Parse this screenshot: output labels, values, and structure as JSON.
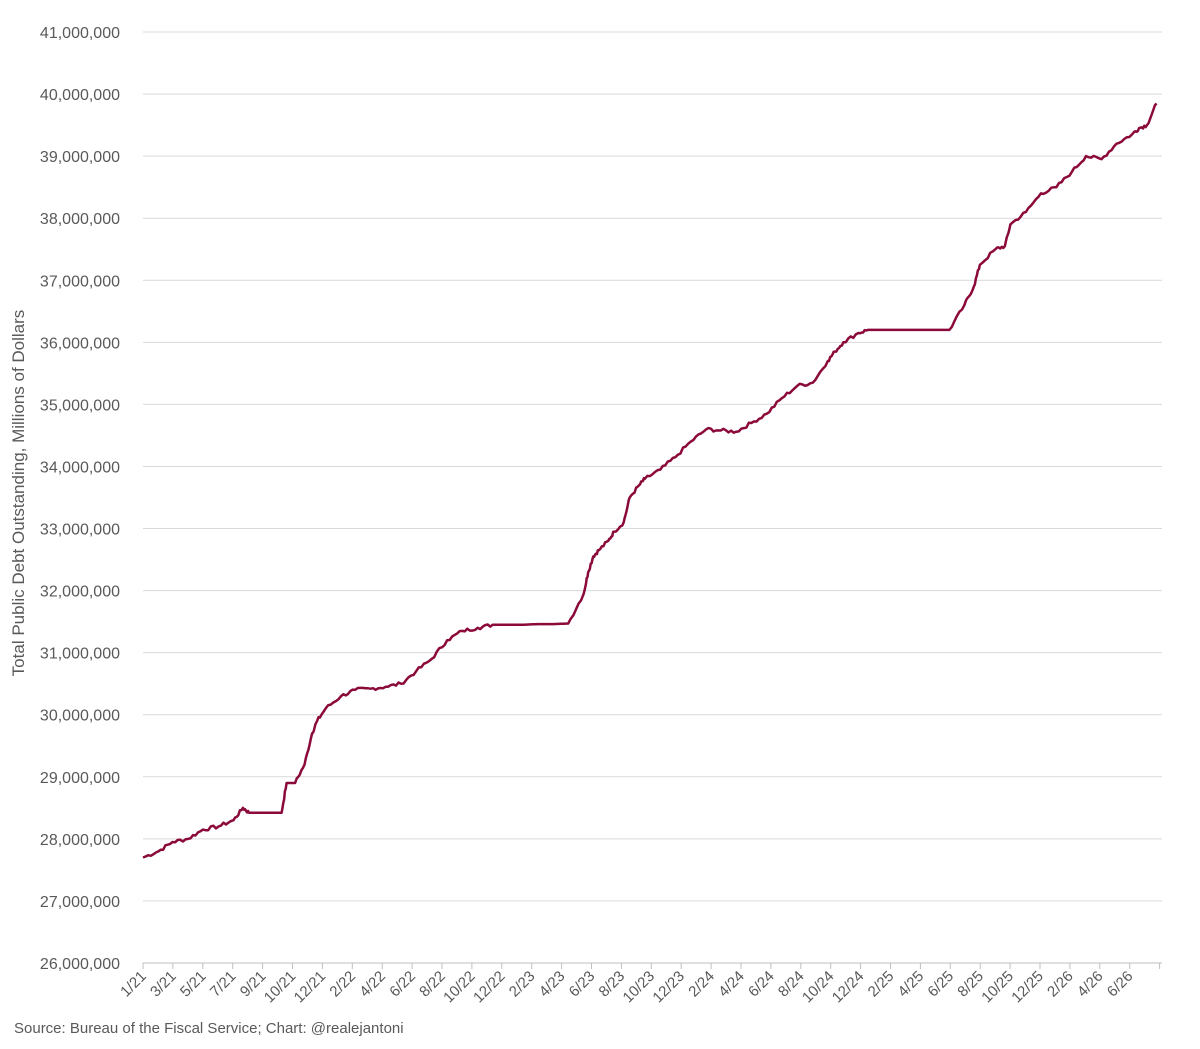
{
  "chart_data": {
    "type": "line",
    "title": "",
    "xlabel": "",
    "ylabel": "Total Public Debt Outstanding, Millions of Dollars",
    "ylim": [
      26000000,
      41000000
    ],
    "y_ticks": [
      26000000,
      27000000,
      28000000,
      29000000,
      30000000,
      31000000,
      32000000,
      33000000,
      34000000,
      35000000,
      36000000,
      37000000,
      38000000,
      39000000,
      40000000,
      41000000
    ],
    "y_tick_labels": [
      "26,000,000",
      "27,000,000",
      "28,000,000",
      "29,000,000",
      "30,000,000",
      "31,000,000",
      "32,000,000",
      "33,000,000",
      "34,000,000",
      "35,000,000",
      "36,000,000",
      "37,000,000",
      "38,000,000",
      "39,000,000",
      "40,000,000",
      "41,000,000"
    ],
    "x_tick_labels": [
      "1/21",
      "3/21",
      "5/21",
      "7/21",
      "9/21",
      "10/21",
      "12/21",
      "2/22",
      "4/22",
      "6/22",
      "8/22",
      "10/22",
      "12/22",
      "2/23",
      "4/23",
      "6/23",
      "8/23",
      "10/23",
      "12/23",
      "2/24",
      "4/24",
      "6/24",
      "8/24",
      "10/24",
      "12/24",
      "2/25",
      "4/25",
      "6/25",
      "8/25",
      "10/25",
      "12/25",
      "2/26",
      "4/26",
      "6/26"
    ],
    "grid": true,
    "legend": "none",
    "line_color": "#8B0A3A",
    "series": [
      {
        "x": [
          "2021-01-01",
          "2021-02-01",
          "2021-03-01",
          "2021-04-01",
          "2021-05-01",
          "2021-06-01",
          "2021-07-01",
          "2021-07-20",
          "2021-08-01",
          "2021-09-01",
          "2021-10-05",
          "2021-10-15",
          "2021-11-01",
          "2021-11-20",
          "2021-12-05",
          "2021-12-15",
          "2022-01-01",
          "2022-02-01",
          "2022-03-01",
          "2022-04-01",
          "2022-05-01",
          "2022-06-01",
          "2022-07-01",
          "2022-08-01",
          "2022-09-01",
          "2022-10-01",
          "2022-11-01",
          "2022-12-01",
          "2023-01-01",
          "2023-02-01",
          "2023-03-01",
          "2023-04-01",
          "2023-05-01",
          "2023-06-01",
          "2023-06-10",
          "2023-06-20",
          "2023-07-01",
          "2023-07-20",
          "2023-08-01",
          "2023-08-20",
          "2023-09-01",
          "2023-09-20",
          "2023-10-01",
          "2023-11-01",
          "2023-12-01",
          "2024-01-01",
          "2024-02-01",
          "2024-03-01",
          "2024-04-01",
          "2024-05-01",
          "2024-06-01",
          "2024-07-01",
          "2024-08-01",
          "2024-09-01",
          "2024-10-01",
          "2024-10-15",
          "2024-11-01",
          "2024-12-01",
          "2024-12-20",
          "2025-01-01",
          "2025-02-01",
          "2025-03-01",
          "2025-04-01",
          "2025-05-01",
          "2025-06-01",
          "2025-07-01",
          "2025-07-20",
          "2025-08-01",
          "2025-09-01",
          "2025-09-20",
          "2025-10-01",
          "2025-11-01",
          "2025-12-01",
          "2026-01-01",
          "2026-02-01",
          "2026-03-01",
          "2026-04-01",
          "2026-05-01",
          "2026-06-01",
          "2026-06-15",
          "2026-07-01",
          "2026-07-20"
        ],
        "values": [
          27700000,
          27800000,
          27950000,
          28000000,
          28150000,
          28200000,
          28300000,
          28500000,
          28420000,
          28420000,
          28420000,
          28900000,
          28900000,
          29200000,
          29700000,
          29900000,
          30100000,
          30300000,
          30400000,
          30420000,
          30450000,
          30500000,
          30700000,
          30900000,
          31200000,
          31350000,
          31400000,
          31450000,
          31450000,
          31450000,
          31460000,
          31460000,
          31470000,
          31950000,
          32300000,
          32550000,
          32650000,
          32800000,
          32950000,
          33100000,
          33500000,
          33700000,
          33800000,
          33950000,
          34150000,
          34400000,
          34600000,
          34580000,
          34560000,
          34700000,
          34850000,
          35100000,
          35300000,
          35350000,
          35700000,
          35850000,
          36000000,
          36150000,
          36200000,
          36200000,
          36200000,
          36200000,
          36200000,
          36200000,
          36200000,
          36600000,
          36900000,
          37250000,
          37500000,
          37550000,
          37900000,
          38100000,
          38400000,
          38500000,
          38750000,
          39000000,
          38950000,
          39200000,
          39350000,
          39450000,
          39500000,
          39850000
        ]
      }
    ]
  },
  "source_text": "Source: Bureau of the Fiscal Service; Chart: @realejantoni"
}
